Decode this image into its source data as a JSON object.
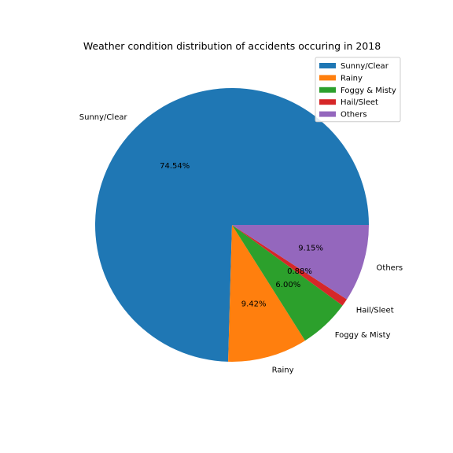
{
  "chart_data": {
    "type": "pie",
    "title": "Weather condition distribution of accidents occuring in 2018",
    "legend_position": "top-right",
    "slices": [
      {
        "label": "Sunny/Clear",
        "value": 74.54,
        "pct_label": "74.54%",
        "color": "#1f77b4"
      },
      {
        "label": "Rainy",
        "value": 9.42,
        "pct_label": "9.42%",
        "color": "#ff7f0e"
      },
      {
        "label": "Foggy & Misty",
        "value": 6.0,
        "pct_label": "6.00%",
        "color": "#2ca02c"
      },
      {
        "label": "Hail/Sleet",
        "value": 0.88,
        "pct_label": "0.88%",
        "color": "#d62728"
      },
      {
        "label": "Others",
        "value": 9.15,
        "pct_label": "9.15%",
        "color": "#9467bd"
      }
    ]
  }
}
